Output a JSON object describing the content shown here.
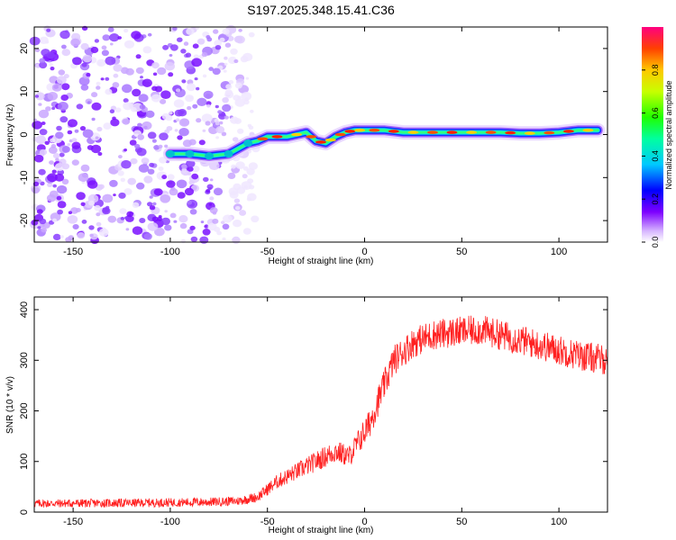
{
  "title": "S197.2025.348.15.41.C36",
  "colors": {
    "signal": "#ff2020",
    "blob": "#8000ff",
    "axis": "#000000"
  },
  "chart_data": [
    {
      "type": "heatmap",
      "xlabel": "Height of straight line (km)",
      "ylabel": "Frequency (Hz)",
      "xlim": [
        -170,
        125
      ],
      "ylim": [
        -25,
        25
      ],
      "xticks": [
        -150,
        -100,
        -50,
        0,
        50,
        100
      ],
      "yticks": [
        -20,
        -10,
        0,
        10,
        20
      ],
      "noise_region_x": [
        -170,
        -60
      ],
      "ridge": {
        "x": [
          -100,
          -90,
          -80,
          -70,
          -60,
          -55,
          -50,
          -40,
          -30,
          -25,
          -20,
          -15,
          -10,
          -5,
          0,
          10,
          20,
          30,
          40,
          50,
          60,
          70,
          80,
          90,
          100,
          110,
          120
        ],
        "y": [
          -4.5,
          -4.5,
          -5,
          -4.5,
          -2,
          -1.5,
          -0.5,
          -0.5,
          0.5,
          -1.5,
          -2,
          -0.5,
          0.5,
          1,
          1,
          1,
          0.5,
          0.5,
          0.5,
          0.5,
          0.5,
          0.5,
          0.3,
          0.3,
          0.5,
          1,
          1
        ]
      },
      "colorbar": {
        "label": "Normalized spectral amplitude",
        "range": [
          0,
          1
        ],
        "ticks": [
          "0.0",
          "0.2",
          "0.4",
          "0.6",
          "0.8"
        ]
      }
    },
    {
      "type": "line",
      "xlabel": "Height of straight line (km)",
      "ylabel": "SNR (10 * v/v)",
      "xlim": [
        -170,
        125
      ],
      "ylim": [
        0,
        425
      ],
      "xticks": [
        -150,
        -100,
        -50,
        0,
        50,
        100
      ],
      "yticks": [
        0,
        100,
        200,
        300,
        400
      ],
      "trend": {
        "x": [
          -170,
          -120,
          -80,
          -65,
          -55,
          -45,
          -35,
          -25,
          -15,
          -8,
          -3,
          2,
          8,
          15,
          25,
          35,
          45,
          60,
          75,
          90,
          110,
          125
        ],
        "y": [
          17,
          18,
          20,
          22,
          30,
          60,
          80,
          100,
          120,
          110,
          140,
          170,
          230,
          300,
          335,
          350,
          355,
          360,
          345,
          330,
          310,
          300
        ]
      },
      "noise_amplitude": 30
    }
  ]
}
